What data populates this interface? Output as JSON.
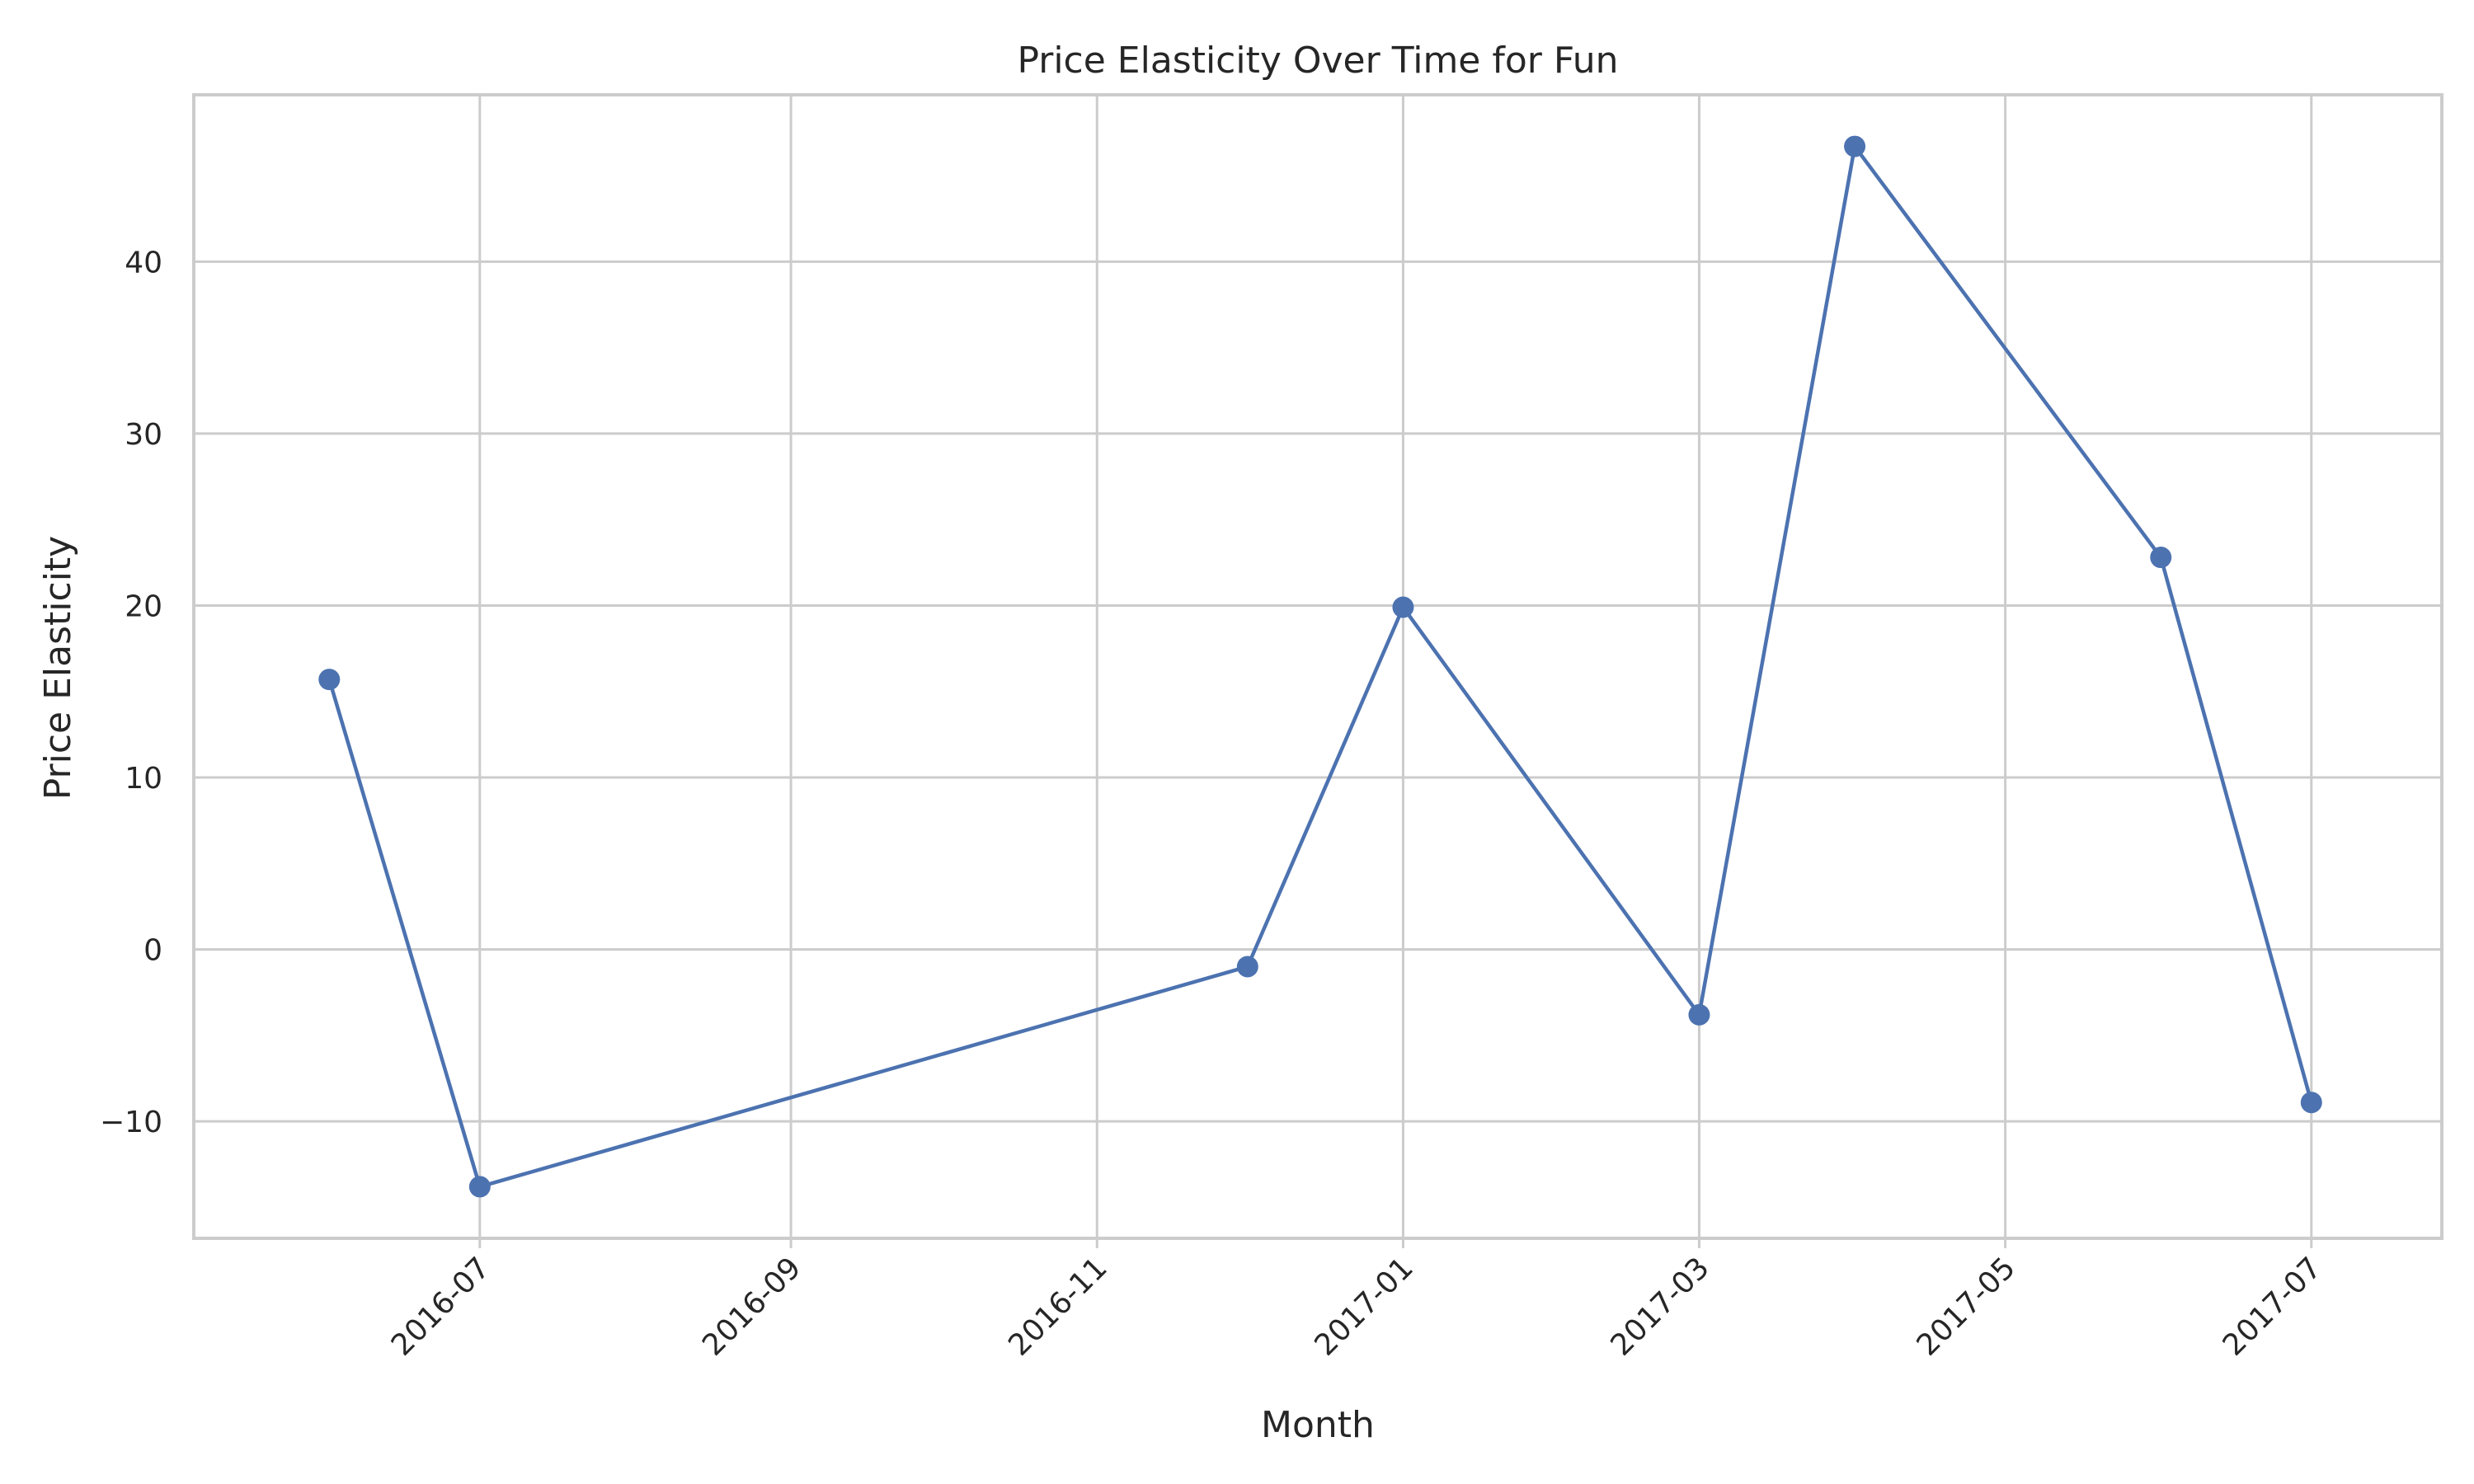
{
  "chart_data": {
    "type": "line",
    "title": "Price Elasticity Over Time for Fun",
    "xlabel": "Month",
    "ylabel": "Price Elasticity",
    "x": [
      "2016-06-01",
      "2016-07-01",
      "2016-12-01",
      "2017-01-01",
      "2017-03-01",
      "2017-04-01",
      "2017-06-01",
      "2017-07-01"
    ],
    "series": [
      {
        "values": [
          15.7,
          -13.8,
          -1.0,
          19.9,
          -3.8,
          46.7,
          22.8,
          -8.9
        ],
        "color": "#4c72b0",
        "marker": "circle"
      }
    ],
    "x_ticks": [
      "2016-07",
      "2016-09",
      "2016-11",
      "2017-01",
      "2017-03",
      "2017-05",
      "2017-07"
    ],
    "y_ticks": [
      "−10",
      "0",
      "10",
      "20",
      "30",
      "40"
    ],
    "y_tick_values": [
      -10,
      0,
      10,
      20,
      30,
      40
    ],
    "ylim": [
      -16.8,
      49.7
    ],
    "xlim": [
      "2016-05-05",
      "2017-07-27"
    ],
    "grid": true
  }
}
